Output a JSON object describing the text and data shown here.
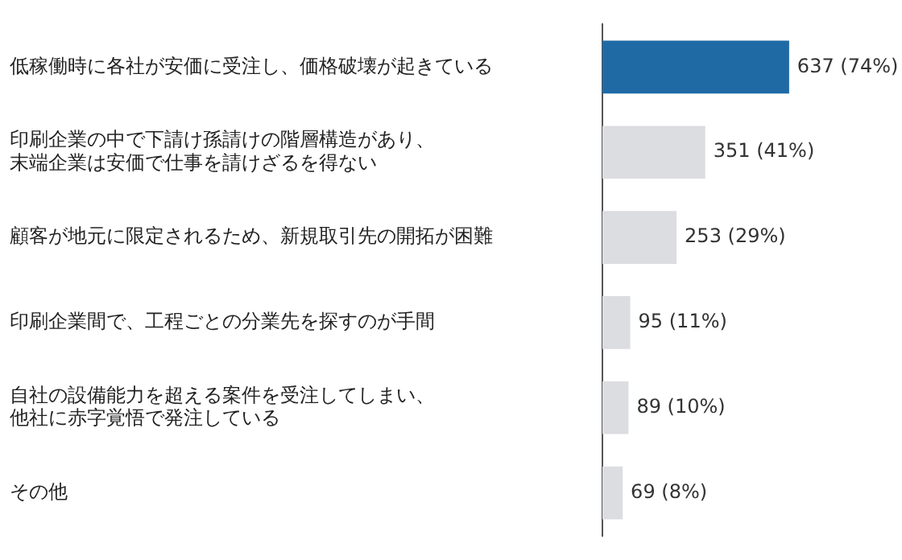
{
  "chart_data": {
    "type": "bar",
    "orientation": "horizontal",
    "categories": [
      "低稼働時に各社が安価に受注し、価格破壊が起きている",
      "印刷企業の中で下請け孫請けの階層構造があり、末端企業は安価で仕事を請けざるを得ない",
      "顧客が地元に限定されるため、新規取引先の開拓が困難",
      "印刷企業間で、工程ごとの分業先を探すのが手間",
      "自社の設備能力を超える案件を受注してしまい、他社に赤字覚悟で発注している",
      "その他"
    ],
    "values": [
      637,
      351,
      253,
      95,
      89,
      69
    ],
    "colors": [
      "#1f6aa5",
      "#dcdde1",
      "#dcdde1",
      "#dcdde1",
      "#dcdde1",
      "#dcdde1"
    ],
    "value_labels": [
      "637 (74%)",
      "351 (41%)",
      "253 (29%)",
      "95 (11%)",
      "89 (10%)",
      "69 (8%)"
    ],
    "legend": false
  }
}
